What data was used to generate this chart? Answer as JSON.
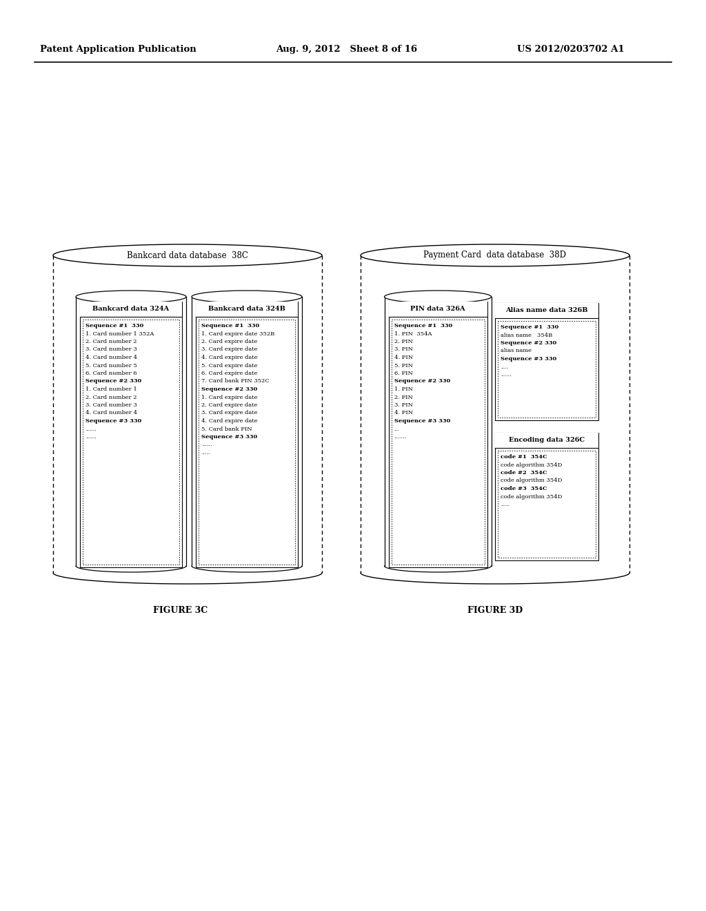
{
  "header_left": "Patent Application Publication",
  "header_mid": "Aug. 9, 2012   Sheet 8 of 16",
  "header_right": "US 2012/0203702 A1",
  "fig3c_label": "FIGURE 3C",
  "fig3d_label": "FIGURE 3D",
  "db38c_title": "Bankcard data database  38C",
  "db38d_title": "Payment Card  data database  38D",
  "box324a_title": "Bankcard data 324A",
  "box324a_content": [
    "Sequence #1  330",
    "1. Card number 1 352A",
    "2. Card number 2",
    "3. Card number 3",
    "4. Card number 4",
    "5. Card number 5",
    "6. Card number 6",
    "Sequence #2 330",
    "1. Card number 1",
    "2. Card number 2",
    "3. Card number 3",
    "4. Card number 4",
    "Sequence #3 330",
    "......",
    "......"
  ],
  "box324a_bold": [
    0,
    7,
    12
  ],
  "box324b_title": "Bankcard data 324B",
  "box324b_content": [
    "Sequence #1  330",
    "1. Card expire date 352B",
    "2. Card expire date",
    "3. Card expire date",
    "4. Card expire date",
    "5. Card expire date",
    "6. Card expire date",
    "7. Card bank PIN 352C",
    "Sequence #2 330",
    "1. Card expire date",
    "2. Card expire date",
    "3. Card expire date",
    "4. Card expire date",
    "5. Card bank PIN",
    "Sequence #3 330",
    "......",
    "....."
  ],
  "box324b_bold": [
    0,
    8,
    14
  ],
  "box326a_title": "PIN data 326A",
  "box326a_content": [
    "Sequence #1  330",
    "1. PIN  354A",
    "2. PIN",
    "3. PIN",
    "4. PIN",
    "5. PIN",
    "6. PIN",
    "Sequence #2 330",
    "1. PIN",
    "2. PIN",
    "3. PIN",
    "4. PIN",
    "Sequence #3 330",
    "...",
    "......."
  ],
  "box326a_bold": [
    0,
    7,
    12
  ],
  "box326b_title": "Alias name data 326B",
  "box326b_content": [
    "Sequence #1  330",
    "alias name   354B",
    "Sequence #2 330",
    "alias name",
    "Sequence #3 330",
    "....",
    "......"
  ],
  "box326b_bold": [
    0,
    2,
    4
  ],
  "box326c_title": "Encoding data 326C",
  "box326c_content": [
    "code #1  354C",
    "code algorithm 354D",
    "code #2  354C",
    "code algorithm 354D",
    "code #3  354C",
    "code algorithm 354D",
    "....."
  ],
  "box326c_bold": [
    0,
    2,
    4
  ],
  "background": "#ffffff"
}
